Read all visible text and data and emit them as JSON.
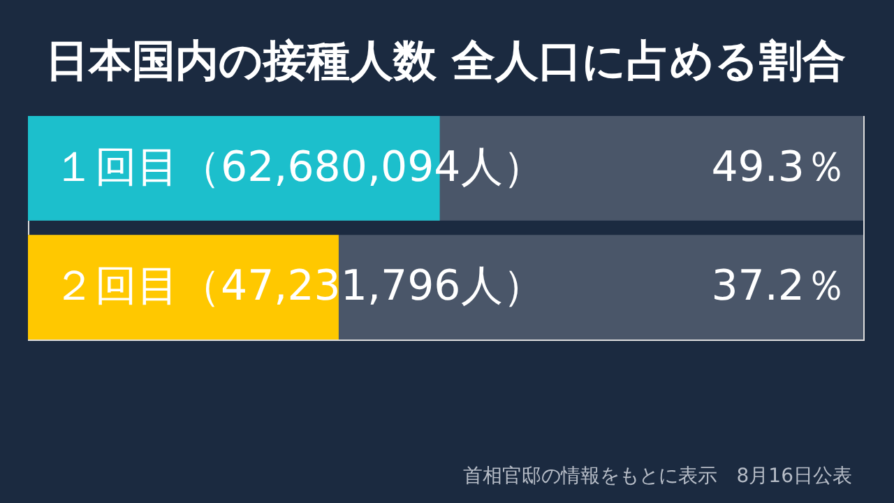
{
  "chart_data": {
    "type": "bar",
    "orientation": "horizontal",
    "title": "日本国内の接種人数 全人口に占める割合",
    "categories": [
      "１回目（62,680,094人）",
      "２回目（47,231,796人）"
    ],
    "values": [
      49.3,
      37.2
    ],
    "colors": [
      "#1cbfcc",
      "#ffc800"
    ],
    "value_labels": [
      "49.3％",
      "37.2％"
    ],
    "xlim": [
      0,
      100
    ],
    "annotations": [
      "首相官邸の情報をもとに表示　8月16日公表"
    ]
  }
}
